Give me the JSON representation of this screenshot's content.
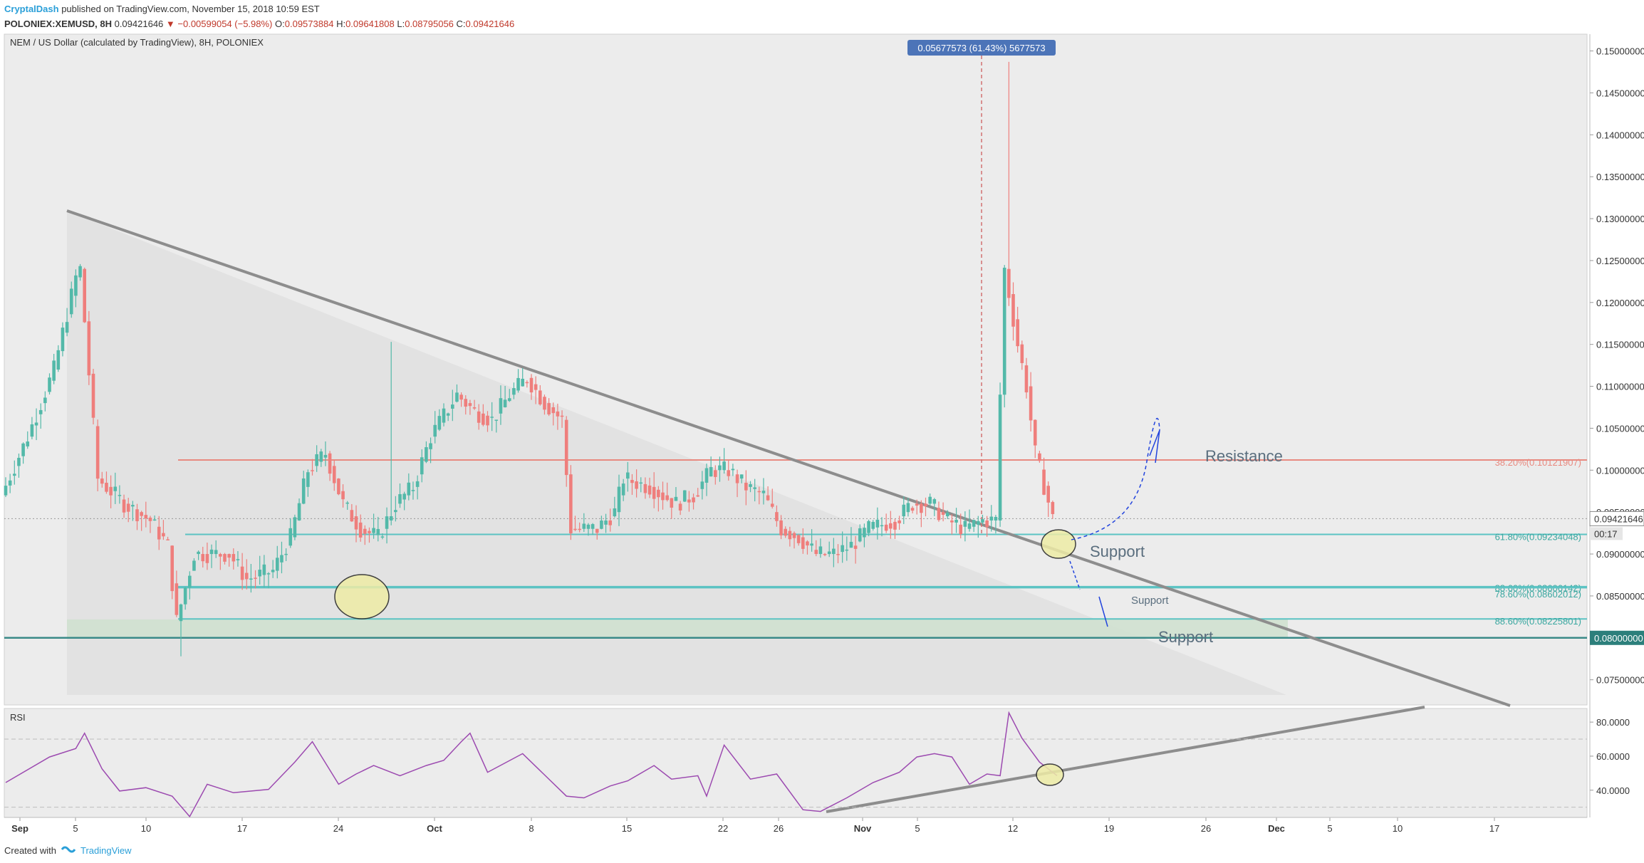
{
  "header": {
    "author": "CryptalDash",
    "published": "published on TradingView.com, November 15, 2018 10:59 EST",
    "symbol": "POLONIEX:XEMUSD, 8H",
    "last": "0.09421646",
    "change": "▼ −0.00599054 (−5.98%)",
    "open": "0.09573884",
    "high": "0.09641808",
    "low": "0.08795056",
    "close": "0.09421646"
  },
  "chart": {
    "title": "NEM / US Dollar (calculated by TradingView), 8H, POLONIEX",
    "measure_label": "0.05677573 (61.43%) 5677573",
    "last_price_label": "0.09421646",
    "countdown": "00:17",
    "highlight_price": "0.08000000",
    "rsi_label": "RSI"
  },
  "colors": {
    "up": "#53b9a9",
    "down": "#ef7e7c",
    "trendline": "#8d8d8d",
    "teal_line": "#5cc3c3",
    "resistance_line": "#e88a80",
    "rsi": "#9c4ab0",
    "support_box": "#cfe1cf",
    "circle_fill": "#eeeca6",
    "arrow": "#2244dd"
  },
  "chart_data": {
    "type": "candlestick",
    "y_axis": {
      "min": 0.072,
      "max": 0.152,
      "ticks": [
        "0.07500000",
        "0.08000000",
        "0.08500000",
        "0.09000000",
        "0.09500000",
        "0.10000000",
        "0.10500000",
        "0.11000000",
        "0.11500000",
        "0.12000000",
        "0.12500000",
        "0.13000000",
        "0.13500000",
        "0.14000000",
        "0.14500000",
        "0.15000000"
      ]
    },
    "x_axis": {
      "labels": [
        "Sep",
        "5",
        "10",
        "17",
        "24",
        "Oct",
        "8",
        "15",
        "22",
        "26",
        "Nov",
        "5",
        "12",
        "19",
        "26",
        "Dec",
        "5",
        "10",
        "17"
      ]
    },
    "price_path": [
      [
        0,
        0.097
      ],
      [
        6,
        0.104
      ],
      [
        12,
        0.112
      ],
      [
        17,
        0.123
      ],
      [
        18,
        0.124
      ],
      [
        22,
        0.099
      ],
      [
        28,
        0.096
      ],
      [
        34,
        0.094
      ],
      [
        38,
        0.091
      ],
      [
        40,
        0.082
      ],
      [
        44,
        0.09
      ],
      [
        52,
        0.09
      ],
      [
        56,
        0.087
      ],
      [
        62,
        0.088
      ],
      [
        66,
        0.092
      ],
      [
        70,
        0.1
      ],
      [
        74,
        0.102
      ],
      [
        78,
        0.096
      ],
      [
        82,
        0.093
      ],
      [
        86,
        0.092
      ],
      [
        90,
        0.096
      ],
      [
        94,
        0.098
      ],
      [
        98,
        0.104
      ],
      [
        104,
        0.109
      ],
      [
        108,
        0.107
      ],
      [
        112,
        0.106
      ],
      [
        116,
        0.109
      ],
      [
        120,
        0.111
      ],
      [
        124,
        0.108
      ],
      [
        128,
        0.106
      ],
      [
        130,
        0.093
      ],
      [
        136,
        0.093
      ],
      [
        140,
        0.095
      ],
      [
        142,
        0.099
      ],
      [
        148,
        0.098
      ],
      [
        154,
        0.096
      ],
      [
        158,
        0.097
      ],
      [
        162,
        0.1
      ],
      [
        166,
        0.1
      ],
      [
        170,
        0.098
      ],
      [
        174,
        0.097
      ],
      [
        178,
        0.093
      ],
      [
        182,
        0.092
      ],
      [
        186,
        0.09
      ],
      [
        190,
        0.09
      ],
      [
        194,
        0.091
      ],
      [
        198,
        0.093
      ],
      [
        204,
        0.094
      ],
      [
        208,
        0.096
      ],
      [
        212,
        0.096
      ],
      [
        216,
        0.094
      ],
      [
        220,
        0.093
      ],
      [
        224,
        0.094
      ],
      [
        227,
        0.094
      ],
      [
        229,
        0.124
      ],
      [
        232,
        0.115
      ],
      [
        234,
        0.11
      ],
      [
        236,
        0.102
      ],
      [
        239,
        0.0962
      ],
      [
        240,
        0.0942
      ]
    ],
    "levels": [
      {
        "label": "38.20%(0.10121907)",
        "value": 0.10121907,
        "role": "resistance"
      },
      {
        "label": "61.80%(0.09234048)",
        "value": 0.09234048,
        "role": "fib"
      },
      {
        "label": "88.60%(0.08606142)",
        "value": 0.08606142,
        "role": "fib"
      },
      {
        "label": "78.60%(0.08602012)",
        "value": 0.08602012,
        "role": "fib"
      },
      {
        "label": "88.60%(0.08225801)",
        "value": 0.08225801,
        "role": "fib"
      },
      {
        "label": "",
        "value": 0.08,
        "role": "horizontal"
      }
    ],
    "annotations": [
      {
        "text": "Resistance",
        "kind": "text"
      },
      {
        "text": "Support",
        "kind": "text"
      },
      {
        "text": "Support",
        "kind": "text"
      },
      {
        "text": "Support",
        "kind": "text"
      }
    ],
    "rsi": {
      "ticks": [
        "40.0000",
        "60.0000",
        "80.0000"
      ],
      "min": 24,
      "max": 88,
      "band": [
        30,
        70
      ],
      "path": [
        [
          0,
          46
        ],
        [
          10,
          58
        ],
        [
          16,
          66
        ],
        [
          18,
          72
        ],
        [
          22,
          54
        ],
        [
          26,
          38
        ],
        [
          32,
          43
        ],
        [
          38,
          35
        ],
        [
          42,
          26
        ],
        [
          46,
          42
        ],
        [
          52,
          40
        ],
        [
          60,
          39
        ],
        [
          66,
          58
        ],
        [
          70,
          67
        ],
        [
          76,
          45
        ],
        [
          80,
          48
        ],
        [
          84,
          56
        ],
        [
          90,
          47
        ],
        [
          96,
          56
        ],
        [
          100,
          56
        ],
        [
          104,
          70
        ],
        [
          106,
          72
        ],
        [
          110,
          52
        ],
        [
          118,
          60
        ],
        [
          122,
          53
        ],
        [
          128,
          35
        ],
        [
          132,
          37
        ],
        [
          138,
          41
        ],
        [
          142,
          47
        ],
        [
          148,
          53
        ],
        [
          152,
          48
        ],
        [
          158,
          47
        ],
        [
          160,
          38
        ],
        [
          164,
          65
        ],
        [
          170,
          48
        ],
        [
          176,
          48
        ],
        [
          182,
          30
        ],
        [
          186,
          26
        ],
        [
          192,
          37
        ],
        [
          198,
          43
        ],
        [
          204,
          52
        ],
        [
          208,
          58
        ],
        [
          212,
          63
        ],
        [
          216,
          58
        ],
        [
          220,
          45
        ],
        [
          224,
          48
        ],
        [
          227,
          50
        ],
        [
          229,
          84
        ],
        [
          232,
          72
        ],
        [
          236,
          55
        ],
        [
          240,
          50
        ]
      ]
    }
  }
}
